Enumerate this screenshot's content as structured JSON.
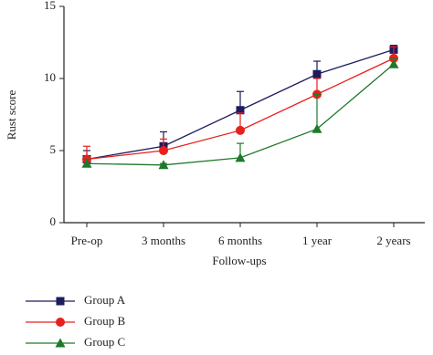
{
  "chart_data": {
    "type": "line",
    "y_label": "Rust score",
    "x_label": "Follow-ups",
    "categories": [
      "Pre-op",
      "3 months",
      "6 months",
      "1 year",
      "2 years"
    ],
    "ylim": [
      0,
      15
    ],
    "yticks": [
      0,
      5,
      10,
      15
    ],
    "series": [
      {
        "name": "Group A",
        "color": "#1c1c5e",
        "marker": "square",
        "values": [
          4.4,
          5.3,
          7.8,
          10.3,
          12.0
        ],
        "errors": [
          0.6,
          1.0,
          1.3,
          0.9,
          0.3
        ]
      },
      {
        "name": "Group B",
        "color": "#e8201c",
        "marker": "circle",
        "values": [
          4.4,
          5.0,
          6.4,
          8.9,
          11.4
        ],
        "errors": [
          0.9,
          0.8,
          1.2,
          1.1,
          0.8
        ]
      },
      {
        "name": "Group C",
        "color": "#1e7a2a",
        "marker": "triangle",
        "values": [
          4.1,
          4.0,
          4.5,
          6.5,
          11.0
        ],
        "errors": [
          0.3,
          0.1,
          1.0,
          2.4,
          0.4
        ]
      }
    ]
  }
}
